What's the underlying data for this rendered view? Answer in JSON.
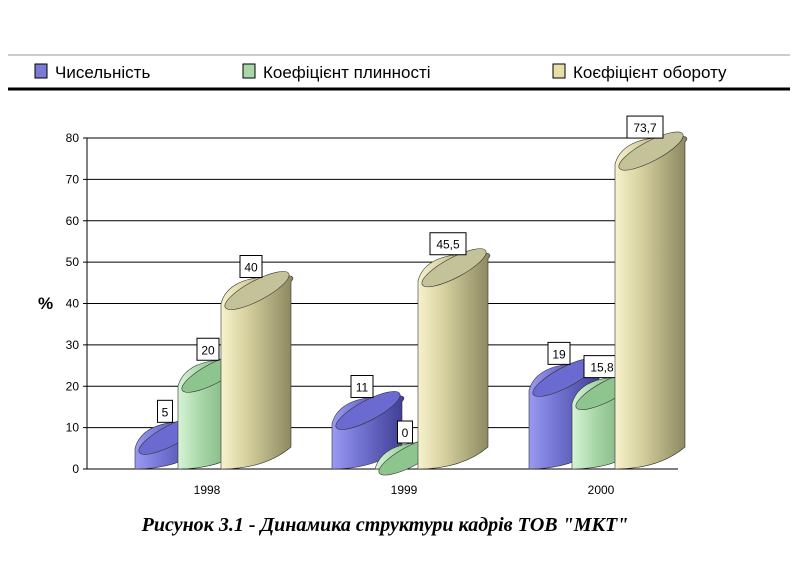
{
  "chart_data": {
    "type": "bar",
    "title": "",
    "caption": "Рисунок 3.1 - Динамика структури кадрів ТОВ \"МКТ\"",
    "xlabel": "",
    "ylabel": "%",
    "ylim": [
      0,
      80
    ],
    "yticks": [
      0,
      10,
      20,
      30,
      40,
      50,
      60,
      70,
      80
    ],
    "categories": [
      "1998",
      "1999",
      "2000"
    ],
    "series": [
      {
        "name": "Чисельність",
        "values": [
          5,
          11,
          19
        ],
        "labels": [
          "5",
          "11",
          "19"
        ],
        "color": "#7b7bd6"
      },
      {
        "name": "Коефіцієнт плинності",
        "values": [
          20,
          0,
          15.8
        ],
        "labels": [
          "20",
          "0",
          "15,8"
        ],
        "color": "#a8d8a8"
      },
      {
        "name": "Коєфіцієнт обороту",
        "values": [
          40,
          45.5,
          73.7
        ],
        "labels": [
          "40",
          "45,5",
          "73,7"
        ],
        "color": "#e6e0a8"
      }
    ],
    "legend": "top",
    "grid": true,
    "bar_shape": "cylinder-3d"
  }
}
